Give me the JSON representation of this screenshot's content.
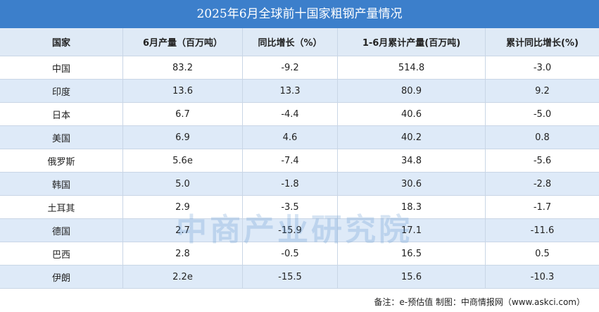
{
  "title": "2025年6月全球前十国家粗钢产量情况",
  "table": {
    "header": [
      "国家",
      "6月产量（百万吨）",
      "同比增长（%）",
      "1-6月累计产量(百万吨)",
      "累计同比增长(%)"
    ],
    "rows": [
      [
        "中国",
        "83.2",
        "-9.2",
        "514.8",
        "-3.0"
      ],
      [
        "印度",
        "13.6",
        "13.3",
        "80.9",
        "9.2"
      ],
      [
        "日本",
        "6.7",
        "-4.4",
        "40.6",
        "-5.0"
      ],
      [
        "美国",
        "6.9",
        "4.6",
        "40.2",
        "0.8"
      ],
      [
        "俄罗斯",
        "5.6e",
        "-7.4",
        "34.8",
        "-5.6"
      ],
      [
        "韩国",
        "5.0",
        "-1.8",
        "30.6",
        "-2.8"
      ],
      [
        "土耳其",
        "2.9",
        "-3.5",
        "18.3",
        "-1.7"
      ],
      [
        "德国",
        "2.7",
        "-15.9",
        "17.1",
        "-11.6"
      ],
      [
        "巴西",
        "2.8",
        "-0.5",
        "16.5",
        "0.5"
      ],
      [
        "伊朗",
        "2.2e",
        "-15.5",
        "15.6",
        "-10.3"
      ]
    ]
  },
  "watermark": "中商产业研究院",
  "footer": "备注：e-预估值 制图：中商情报网（www.askci.com）"
}
